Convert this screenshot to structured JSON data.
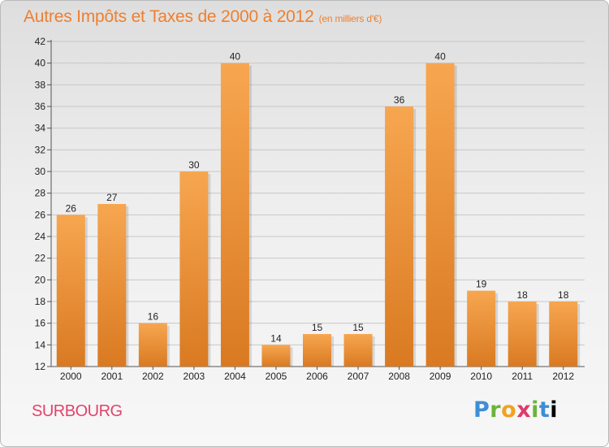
{
  "header": {
    "title": "Autres Impôts et Taxes de 2000 à 2012",
    "subtitle": "(en milliers d'€)"
  },
  "footer": {
    "town": "SURBOURG",
    "logo_letters": [
      "P",
      "r",
      "o",
      "x",
      "i",
      "t",
      "i"
    ]
  },
  "colors": {
    "bar_top": "#f7a650",
    "bar_bottom": "#d97a22",
    "title": "#ef7f2e",
    "town": "#e0446b"
  },
  "chart_data": {
    "type": "bar",
    "title": "Autres Impôts et Taxes de 2000 à 2012",
    "subtitle": "(en milliers d'€)",
    "categories": [
      "2000",
      "2001",
      "2002",
      "2003",
      "2004",
      "2005",
      "2006",
      "2007",
      "2008",
      "2009",
      "2010",
      "2011",
      "2012"
    ],
    "values": [
      26,
      27,
      16,
      30,
      40,
      14,
      15,
      15,
      36,
      40,
      19,
      18,
      18
    ],
    "ylim": [
      12,
      42
    ],
    "yticks": [
      12,
      14,
      16,
      18,
      20,
      22,
      24,
      26,
      28,
      30,
      32,
      34,
      36,
      38,
      40,
      42
    ],
    "grid": true,
    "data_labels": true,
    "legend": "none"
  }
}
